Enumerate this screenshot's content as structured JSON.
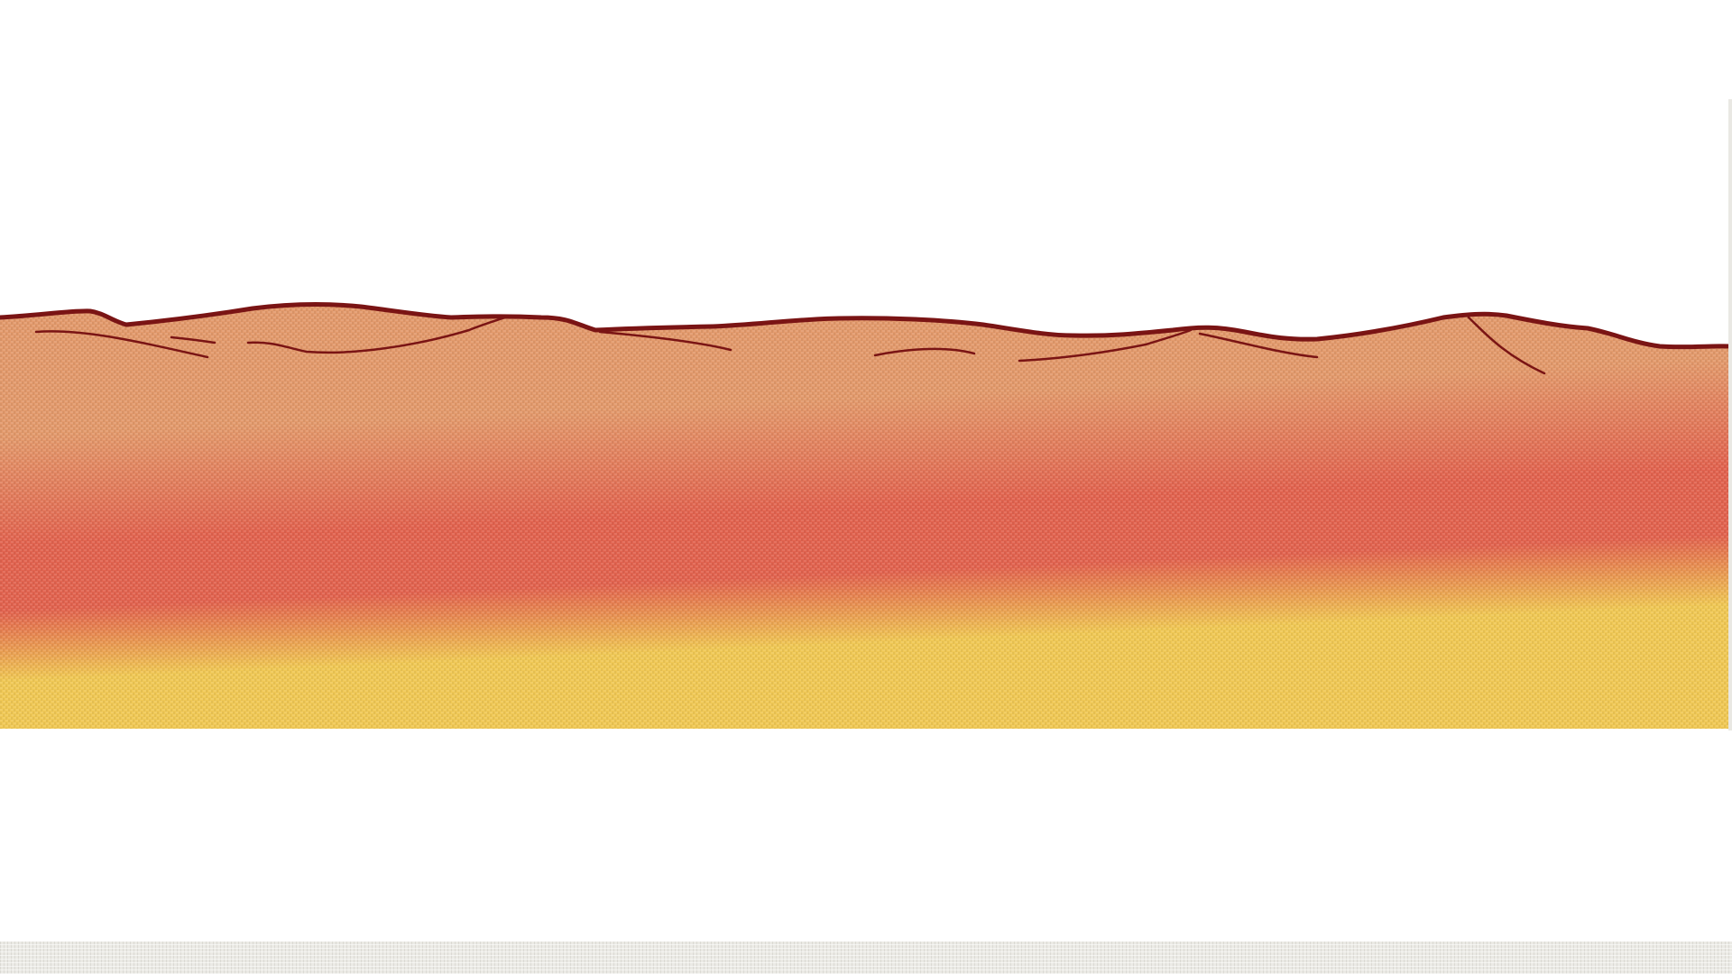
{
  "scene": {
    "description_free": true,
    "colors": {
      "background": "#ffffff",
      "sand_top": "#e39a6c",
      "sand_mid": "#e2634f",
      "sand_bottom": "#f0c855",
      "outline": "#7a1414",
      "ground_strip": "#ebeae5"
    },
    "layers": [
      "sky",
      "desert-terrain",
      "ground-strip"
    ],
    "texture": "canvas-weave"
  }
}
